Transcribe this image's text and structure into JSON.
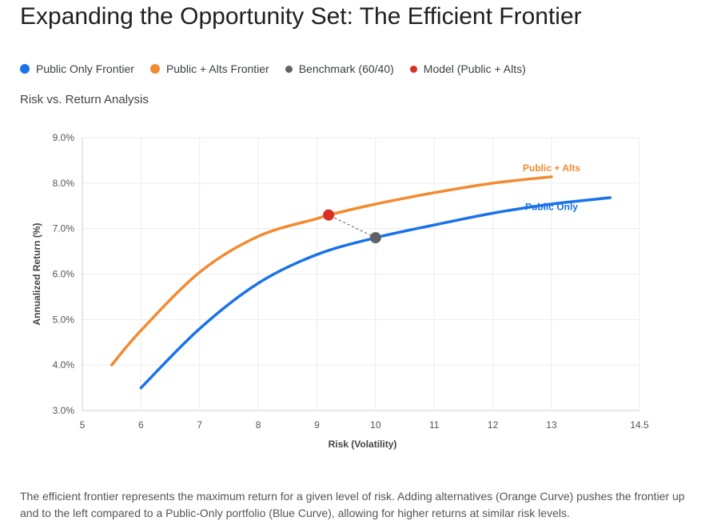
{
  "title": "Expanding the Opportunity Set: The Efficient Frontier",
  "subtitle": "Risk vs. Return Analysis",
  "legend": [
    {
      "label": "Public Only Frontier",
      "color": "#1a73e8"
    },
    {
      "label": "Public + Alts Frontier",
      "color": "#f28b30"
    },
    {
      "label": "Benchmark (60/40)",
      "color": "#5f6368"
    },
    {
      "label": "Model (Public + Alts)",
      "color": "#d93025"
    }
  ],
  "caption": "The efficient frontier represents the maximum return for a given level of risk. Adding alternatives (Orange Curve) pushes the frontier up and to the left compared to a Public-Only portfolio (Blue Curve), allowing for higher returns at similar risk levels.",
  "chart_data": {
    "type": "line",
    "xlabel": "Risk (Volatility)",
    "ylabel": "Annualized Return (%)",
    "xlim": [
      5,
      14.5
    ],
    "ylim": [
      3.0,
      9.0
    ],
    "xticks": [
      "5",
      "6",
      "7",
      "8",
      "9",
      "10",
      "11",
      "12",
      "13",
      "14.5"
    ],
    "yticks": [
      "3.0%",
      "4.0%",
      "5.0%",
      "6.0%",
      "7.0%",
      "8.0%",
      "9.0%"
    ],
    "grid": true,
    "series": [
      {
        "name": "Public Only",
        "color": "#1a73e8",
        "x": [
          6,
          7,
          8,
          9,
          10,
          11,
          12,
          13,
          14
        ],
        "y": [
          3.5,
          4.8,
          5.8,
          6.43,
          6.8,
          7.08,
          7.34,
          7.54,
          7.68
        ]
      },
      {
        "name": "Public + Alts",
        "color": "#f28b30",
        "x": [
          5.5,
          6,
          7,
          8,
          9,
          9.2,
          10,
          11,
          12,
          13
        ],
        "y": [
          4.0,
          4.76,
          6.04,
          6.83,
          7.22,
          7.3,
          7.54,
          7.79,
          8.0,
          8.14
        ]
      }
    ],
    "points": [
      {
        "name": "Benchmark (60/40)",
        "x": 10,
        "y": 6.8,
        "color": "#5f6368"
      },
      {
        "name": "Model (Public + Alts)",
        "x": 9.2,
        "y": 7.3,
        "color": "#d93025"
      }
    ]
  }
}
